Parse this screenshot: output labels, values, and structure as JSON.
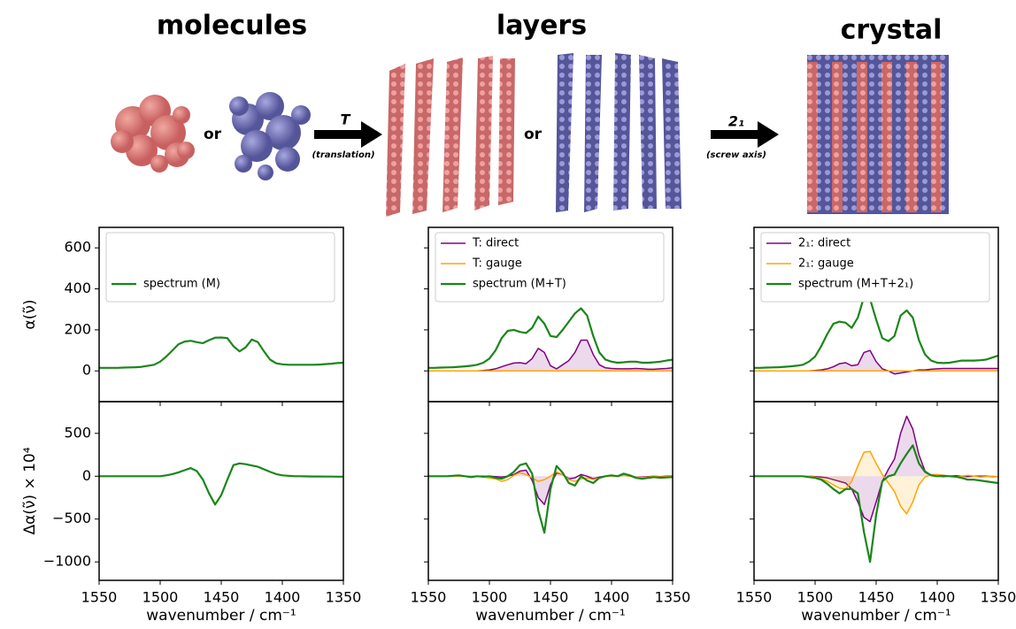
{
  "header": {
    "titles": [
      "molecules",
      "layers",
      "crystal"
    ],
    "or_labels": [
      "or",
      "or"
    ],
    "arrows": [
      {
        "label": "T",
        "note": "(translation)"
      },
      {
        "label": "2₁",
        "note": "(screw axis)"
      }
    ]
  },
  "chart_data": [
    {
      "type": "line",
      "ylabel": "α(ν̃)",
      "legend": "upper left",
      "x": [
        1550,
        1545,
        1540,
        1535,
        1530,
        1525,
        1520,
        1515,
        1510,
        1505,
        1500,
        1495,
        1490,
        1485,
        1480,
        1475,
        1470,
        1465,
        1460,
        1455,
        1450,
        1445,
        1440,
        1435,
        1430,
        1425,
        1420,
        1415,
        1410,
        1405,
        1400,
        1395,
        1390,
        1385,
        1380,
        1375,
        1370,
        1365,
        1360,
        1355,
        1350
      ],
      "xlim": [
        1550,
        1350
      ],
      "xticks": [
        1550,
        1500,
        1450,
        1400,
        1350
      ],
      "xtick_labels": false,
      "ylim": [
        -150,
        700
      ],
      "yticks": [
        0,
        200,
        400,
        600
      ],
      "ytick_labels": true,
      "series": [
        {
          "name": "spectrum (M)",
          "color": "#1a861a",
          "fill": false,
          "values": [
            15,
            15,
            15,
            15,
            16,
            17,
            18,
            20,
            25,
            30,
            45,
            70,
            100,
            130,
            143,
            147,
            140,
            135,
            150,
            162,
            163,
            160,
            120,
            95,
            115,
            153,
            140,
            95,
            55,
            37,
            32,
            30,
            30,
            30,
            30,
            30,
            31,
            33,
            35,
            38,
            40
          ]
        }
      ]
    },
    {
      "type": "line",
      "legend": "upper left",
      "x": [
        1550,
        1545,
        1540,
        1535,
        1530,
        1525,
        1520,
        1515,
        1510,
        1505,
        1500,
        1495,
        1490,
        1485,
        1480,
        1475,
        1470,
        1465,
        1460,
        1455,
        1450,
        1445,
        1440,
        1435,
        1430,
        1425,
        1420,
        1415,
        1410,
        1405,
        1400,
        1395,
        1390,
        1385,
        1380,
        1375,
        1370,
        1365,
        1360,
        1355,
        1350
      ],
      "xlim": [
        1550,
        1350
      ],
      "xticks": [
        1550,
        1500,
        1450,
        1400,
        1350
      ],
      "xtick_labels": false,
      "ylim": [
        -150,
        700
      ],
      "yticks": [
        0,
        200,
        400,
        600
      ],
      "ytick_labels": false,
      "series": [
        {
          "name": "T: direct",
          "color": "#800080",
          "fill": true,
          "values": [
            0,
            0,
            0,
            0,
            0,
            0,
            0,
            0,
            0,
            2,
            5,
            10,
            20,
            30,
            38,
            40,
            35,
            60,
            110,
            90,
            25,
            10,
            30,
            50,
            90,
            150,
            150,
            80,
            30,
            15,
            12,
            10,
            10,
            10,
            12,
            10,
            8,
            8,
            10,
            12,
            15
          ]
        },
        {
          "name": "T: gauge",
          "color": "#ffa500",
          "fill": false,
          "values": [
            0,
            0,
            0,
            0,
            0,
            0,
            0,
            0,
            0,
            0,
            0,
            0,
            0,
            0,
            0,
            0,
            0,
            0,
            0,
            0,
            0,
            0,
            0,
            0,
            0,
            0,
            0,
            0,
            0,
            0,
            0,
            0,
            0,
            0,
            0,
            0,
            0,
            0,
            0,
            0,
            0
          ]
        },
        {
          "name": "spectrum (M+T)",
          "color": "#1a861a",
          "fill": false,
          "values": [
            15,
            15,
            16,
            17,
            18,
            20,
            22,
            25,
            30,
            40,
            60,
            100,
            160,
            195,
            200,
            190,
            185,
            210,
            265,
            230,
            170,
            165,
            200,
            240,
            280,
            305,
            270,
            170,
            90,
            55,
            45,
            40,
            42,
            45,
            45,
            40,
            40,
            42,
            45,
            50,
            55
          ]
        }
      ]
    },
    {
      "type": "line",
      "legend": "upper left",
      "x": [
        1550,
        1545,
        1540,
        1535,
        1530,
        1525,
        1520,
        1515,
        1510,
        1505,
        1500,
        1495,
        1490,
        1485,
        1480,
        1475,
        1470,
        1465,
        1460,
        1455,
        1450,
        1445,
        1440,
        1435,
        1430,
        1425,
        1420,
        1415,
        1410,
        1405,
        1400,
        1395,
        1390,
        1385,
        1380,
        1375,
        1370,
        1365,
        1360,
        1355,
        1350
      ],
      "xlim": [
        1550,
        1350
      ],
      "xticks": [
        1550,
        1500,
        1450,
        1400,
        1350
      ],
      "xtick_labels": false,
      "ylim": [
        -150,
        700
      ],
      "yticks": [
        0,
        200,
        400,
        600
      ],
      "ytick_labels": false,
      "series": [
        {
          "name": "2₁: direct",
          "color": "#800080",
          "fill": true,
          "values": [
            0,
            0,
            0,
            0,
            0,
            0,
            0,
            0,
            0,
            0,
            2,
            5,
            10,
            20,
            35,
            40,
            25,
            30,
            90,
            100,
            45,
            10,
            0,
            -15,
            -10,
            -5,
            0,
            5,
            5,
            8,
            10,
            12,
            12,
            12,
            12,
            12,
            12,
            12,
            12,
            12,
            12
          ]
        },
        {
          "name": "2₁: gauge",
          "color": "#ffa500",
          "fill": false,
          "values": [
            0,
            0,
            0,
            0,
            0,
            0,
            0,
            0,
            0,
            0,
            0,
            0,
            0,
            0,
            0,
            0,
            0,
            0,
            0,
            0,
            0,
            0,
            0,
            0,
            0,
            0,
            0,
            0,
            0,
            0,
            0,
            0,
            0,
            0,
            0,
            0,
            0,
            0,
            0,
            0,
            0
          ]
        },
        {
          "name": "spectrum (M+T+2₁)",
          "color": "#1a861a",
          "fill": false,
          "values": [
            15,
            15,
            16,
            17,
            18,
            20,
            22,
            25,
            30,
            45,
            70,
            120,
            180,
            230,
            240,
            235,
            210,
            260,
            360,
            350,
            250,
            160,
            145,
            170,
            270,
            295,
            260,
            150,
            80,
            50,
            40,
            38,
            40,
            45,
            50,
            50,
            50,
            52,
            55,
            65,
            75
          ]
        }
      ]
    },
    {
      "type": "line",
      "ylabel": "Δα(ν̃) × 10⁴",
      "xlabel": "wavenumber / cm⁻¹",
      "x": [
        1550,
        1545,
        1540,
        1535,
        1530,
        1525,
        1520,
        1515,
        1510,
        1505,
        1500,
        1495,
        1490,
        1485,
        1480,
        1475,
        1470,
        1465,
        1460,
        1455,
        1450,
        1445,
        1440,
        1435,
        1430,
        1425,
        1420,
        1415,
        1410,
        1405,
        1400,
        1395,
        1390,
        1385,
        1380,
        1375,
        1370,
        1365,
        1360,
        1355,
        1350
      ],
      "xlim": [
        1550,
        1350
      ],
      "xticks": [
        1550,
        1500,
        1450,
        1400,
        1350
      ],
      "xtick_labels": true,
      "ylim": [
        -1215,
        870
      ],
      "yticks": [
        {
          "value": -1000,
          "label": "−1000"
        },
        {
          "value": -500,
          "label": "−500"
        },
        0,
        500
      ],
      "ytick_labels": true,
      "series": [
        {
          "color": "#1a861a",
          "fill": false,
          "values": [
            0,
            0,
            0,
            0,
            0,
            0,
            0,
            0,
            0,
            0,
            0,
            10,
            25,
            45,
            70,
            95,
            60,
            -40,
            -200,
            -330,
            -220,
            -40,
            130,
            150,
            140,
            125,
            110,
            80,
            50,
            25,
            10,
            5,
            0,
            0,
            -2,
            -3,
            -3,
            -4,
            -4,
            -5,
            -5
          ]
        }
      ]
    },
    {
      "type": "line",
      "xlabel": "wavenumber / cm⁻¹",
      "x": [
        1550,
        1545,
        1540,
        1535,
        1530,
        1525,
        1520,
        1515,
        1510,
        1505,
        1500,
        1495,
        1490,
        1485,
        1480,
        1475,
        1470,
        1465,
        1460,
        1455,
        1450,
        1445,
        1440,
        1435,
        1430,
        1425,
        1420,
        1415,
        1410,
        1405,
        1400,
        1395,
        1390,
        1385,
        1380,
        1375,
        1370,
        1365,
        1360,
        1355,
        1350
      ],
      "xlim": [
        1550,
        1350
      ],
      "xticks": [
        1550,
        1500,
        1450,
        1400,
        1350
      ],
      "xtick_labels": true,
      "ylim": [
        -1215,
        870
      ],
      "yticks": [
        -1000,
        -500,
        0,
        500
      ],
      "ytick_labels": false,
      "series": [
        {
          "color": "#800080",
          "fill": true,
          "values": [
            0,
            0,
            0,
            0,
            0,
            0,
            0,
            0,
            0,
            0,
            0,
            -5,
            -10,
            0,
            20,
            60,
            70,
            -50,
            -250,
            -330,
            -100,
            40,
            20,
            -30,
            -20,
            20,
            0,
            -30,
            -10,
            0,
            5,
            0,
            10,
            0,
            -10,
            -10,
            -5,
            0,
            -5,
            0,
            0
          ]
        },
        {
          "color": "#ffa500",
          "fill": false,
          "values": [
            0,
            0,
            0,
            0,
            0,
            0,
            0,
            0,
            0,
            -10,
            -20,
            -30,
            -60,
            -40,
            10,
            40,
            20,
            -20,
            -60,
            -40,
            0,
            50,
            20,
            -40,
            -60,
            -30,
            -20,
            -40,
            -20,
            0,
            0,
            0,
            10,
            0,
            -10,
            -15,
            -10,
            0,
            -10,
            -5,
            -5
          ]
        },
        {
          "color": "#1a861a",
          "fill": false,
          "values": [
            0,
            0,
            0,
            0,
            5,
            10,
            0,
            -10,
            0,
            -5,
            0,
            -20,
            -30,
            0,
            50,
            130,
            150,
            30,
            -400,
            -660,
            -150,
            120,
            40,
            -80,
            -110,
            0,
            -50,
            -80,
            -20,
            0,
            10,
            0,
            30,
            10,
            -20,
            -30,
            -20,
            -10,
            -20,
            -15,
            -10
          ]
        }
      ]
    },
    {
      "type": "line",
      "xlabel": "wavenumber / cm⁻¹",
      "x": [
        1550,
        1545,
        1540,
        1535,
        1530,
        1525,
        1520,
        1515,
        1510,
        1505,
        1500,
        1495,
        1490,
        1485,
        1480,
        1475,
        1470,
        1465,
        1460,
        1455,
        1450,
        1445,
        1440,
        1435,
        1430,
        1425,
        1420,
        1415,
        1410,
        1405,
        1400,
        1395,
        1390,
        1385,
        1380,
        1375,
        1370,
        1365,
        1360,
        1355,
        1350
      ],
      "xlim": [
        1550,
        1350
      ],
      "xticks": [
        1550,
        1500,
        1450,
        1400,
        1350
      ],
      "xtick_labels": true,
      "ylim": [
        -1215,
        870
      ],
      "yticks": [
        -1000,
        -500,
        0,
        500
      ],
      "ytick_labels": false,
      "series": [
        {
          "color": "#800080",
          "fill": true,
          "values": [
            0,
            0,
            0,
            0,
            0,
            0,
            0,
            0,
            0,
            0,
            -5,
            -10,
            -20,
            -40,
            -60,
            -80,
            -150,
            -300,
            -480,
            -530,
            -300,
            -60,
            80,
            200,
            500,
            700,
            550,
            250,
            60,
            10,
            0,
            -5,
            0,
            5,
            0,
            -5,
            0,
            0,
            0,
            -5,
            -5
          ]
        },
        {
          "color": "#ffa500",
          "fill": true,
          "values": [
            0,
            0,
            0,
            0,
            0,
            0,
            0,
            0,
            0,
            0,
            -10,
            -30,
            -60,
            -100,
            -140,
            -150,
            -60,
            120,
            280,
            290,
            150,
            20,
            -80,
            -180,
            -350,
            -440,
            -300,
            -100,
            -10,
            20,
            20,
            10,
            0,
            -10,
            0,
            10,
            0,
            -10,
            -5,
            0,
            -5
          ]
        },
        {
          "color": "#1a861a",
          "fill": false,
          "values": [
            0,
            0,
            0,
            0,
            0,
            0,
            0,
            0,
            0,
            -10,
            -20,
            -40,
            -90,
            -150,
            -200,
            -150,
            -150,
            -200,
            -650,
            -1000,
            -450,
            -60,
            0,
            20,
            150,
            260,
            360,
            150,
            50,
            10,
            0,
            5,
            0,
            -5,
            -20,
            -40,
            -40,
            -50,
            -60,
            -70,
            -80
          ]
        }
      ]
    }
  ]
}
